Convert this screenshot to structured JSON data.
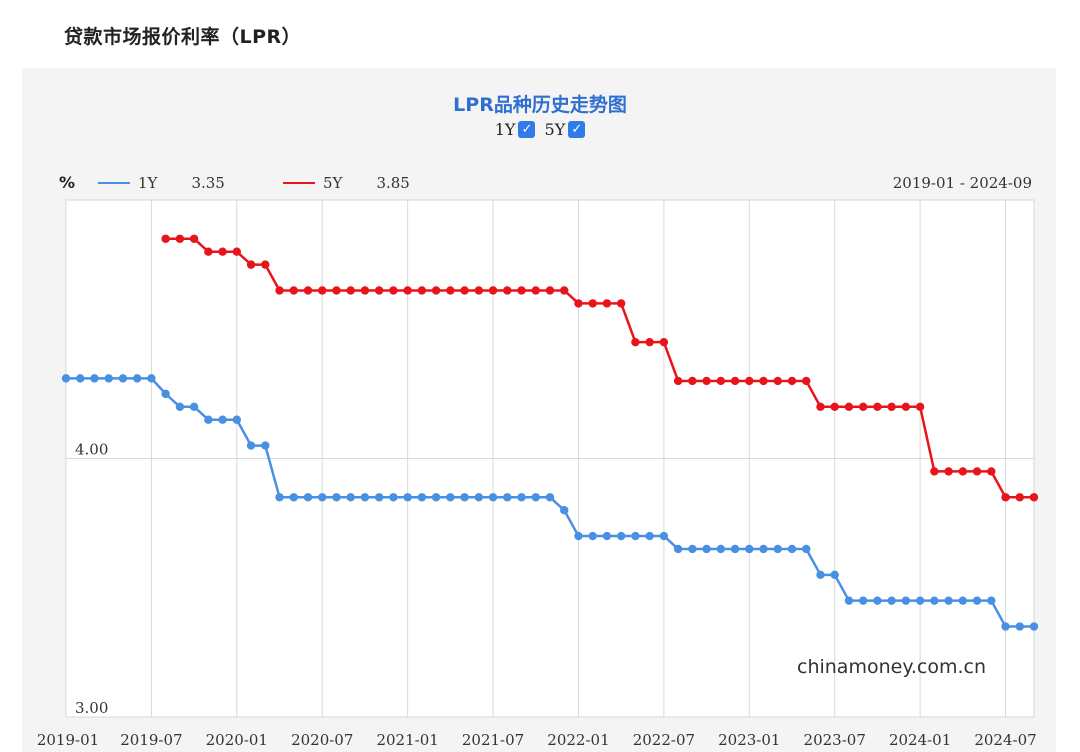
{
  "page": {
    "title": "贷款市场报价利率（LPR）"
  },
  "chart_data": {
    "type": "line",
    "title": "LPR品种历史走势图",
    "unit_label": "%",
    "date_range_label": "2019-01 - 2024-09",
    "toggles": [
      {
        "label": "1Y",
        "checked": true
      },
      {
        "label": "5Y",
        "checked": true
      }
    ],
    "legend": [
      {
        "name": "1Y",
        "latest": "3.35",
        "color": "#4a90e2"
      },
      {
        "name": "5Y",
        "latest": "3.85",
        "color": "#e8141b"
      }
    ],
    "x_ticks": [
      "2019-01",
      "2019-07",
      "2020-01",
      "2020-07",
      "2021-01",
      "2021-07",
      "2022-01",
      "2022-07",
      "2023-01",
      "2023-07",
      "2024-01",
      "2024-07"
    ],
    "y_ticks": [
      "4.00",
      "3.00"
    ],
    "ylim": [
      3.0,
      5.0
    ],
    "xlim": [
      "2019-01",
      "2024-09"
    ],
    "grid": true,
    "watermark": "chinamoney.com.cn",
    "series": [
      {
        "name": "1Y",
        "color": "#4a90e2",
        "points": [
          [
            "2019-01",
            4.31
          ],
          [
            "2019-02",
            4.31
          ],
          [
            "2019-03",
            4.31
          ],
          [
            "2019-04",
            4.31
          ],
          [
            "2019-05",
            4.31
          ],
          [
            "2019-06",
            4.31
          ],
          [
            "2019-07",
            4.31
          ],
          [
            "2019-08",
            4.25
          ],
          [
            "2019-09",
            4.2
          ],
          [
            "2019-10",
            4.2
          ],
          [
            "2019-11",
            4.15
          ],
          [
            "2019-12",
            4.15
          ],
          [
            "2020-01",
            4.15
          ],
          [
            "2020-02",
            4.05
          ],
          [
            "2020-03",
            4.05
          ],
          [
            "2020-04",
            3.85
          ],
          [
            "2020-05",
            3.85
          ],
          [
            "2020-06",
            3.85
          ],
          [
            "2020-07",
            3.85
          ],
          [
            "2020-08",
            3.85
          ],
          [
            "2020-09",
            3.85
          ],
          [
            "2020-10",
            3.85
          ],
          [
            "2020-11",
            3.85
          ],
          [
            "2020-12",
            3.85
          ],
          [
            "2021-01",
            3.85
          ],
          [
            "2021-02",
            3.85
          ],
          [
            "2021-03",
            3.85
          ],
          [
            "2021-04",
            3.85
          ],
          [
            "2021-05",
            3.85
          ],
          [
            "2021-06",
            3.85
          ],
          [
            "2021-07",
            3.85
          ],
          [
            "2021-08",
            3.85
          ],
          [
            "2021-09",
            3.85
          ],
          [
            "2021-10",
            3.85
          ],
          [
            "2021-11",
            3.85
          ],
          [
            "2021-12",
            3.8
          ],
          [
            "2022-01",
            3.7
          ],
          [
            "2022-02",
            3.7
          ],
          [
            "2022-03",
            3.7
          ],
          [
            "2022-04",
            3.7
          ],
          [
            "2022-05",
            3.7
          ],
          [
            "2022-06",
            3.7
          ],
          [
            "2022-07",
            3.7
          ],
          [
            "2022-08",
            3.65
          ],
          [
            "2022-09",
            3.65
          ],
          [
            "2022-10",
            3.65
          ],
          [
            "2022-11",
            3.65
          ],
          [
            "2022-12",
            3.65
          ],
          [
            "2023-01",
            3.65
          ],
          [
            "2023-02",
            3.65
          ],
          [
            "2023-03",
            3.65
          ],
          [
            "2023-04",
            3.65
          ],
          [
            "2023-05",
            3.65
          ],
          [
            "2023-06",
            3.55
          ],
          [
            "2023-07",
            3.55
          ],
          [
            "2023-08",
            3.45
          ],
          [
            "2023-09",
            3.45
          ],
          [
            "2023-10",
            3.45
          ],
          [
            "2023-11",
            3.45
          ],
          [
            "2023-12",
            3.45
          ],
          [
            "2024-01",
            3.45
          ],
          [
            "2024-02",
            3.45
          ],
          [
            "2024-03",
            3.45
          ],
          [
            "2024-04",
            3.45
          ],
          [
            "2024-05",
            3.45
          ],
          [
            "2024-06",
            3.45
          ],
          [
            "2024-07",
            3.35
          ],
          [
            "2024-08",
            3.35
          ],
          [
            "2024-09",
            3.35
          ]
        ]
      },
      {
        "name": "5Y",
        "color": "#e8141b",
        "points": [
          [
            "2019-08",
            4.85
          ],
          [
            "2019-09",
            4.85
          ],
          [
            "2019-10",
            4.85
          ],
          [
            "2019-11",
            4.8
          ],
          [
            "2019-12",
            4.8
          ],
          [
            "2020-01",
            4.8
          ],
          [
            "2020-02",
            4.75
          ],
          [
            "2020-03",
            4.75
          ],
          [
            "2020-04",
            4.65
          ],
          [
            "2020-05",
            4.65
          ],
          [
            "2020-06",
            4.65
          ],
          [
            "2020-07",
            4.65
          ],
          [
            "2020-08",
            4.65
          ],
          [
            "2020-09",
            4.65
          ],
          [
            "2020-10",
            4.65
          ],
          [
            "2020-11",
            4.65
          ],
          [
            "2020-12",
            4.65
          ],
          [
            "2021-01",
            4.65
          ],
          [
            "2021-02",
            4.65
          ],
          [
            "2021-03",
            4.65
          ],
          [
            "2021-04",
            4.65
          ],
          [
            "2021-05",
            4.65
          ],
          [
            "2021-06",
            4.65
          ],
          [
            "2021-07",
            4.65
          ],
          [
            "2021-08",
            4.65
          ],
          [
            "2021-09",
            4.65
          ],
          [
            "2021-10",
            4.65
          ],
          [
            "2021-11",
            4.65
          ],
          [
            "2021-12",
            4.65
          ],
          [
            "2022-01",
            4.6
          ],
          [
            "2022-02",
            4.6
          ],
          [
            "2022-03",
            4.6
          ],
          [
            "2022-04",
            4.6
          ],
          [
            "2022-05",
            4.45
          ],
          [
            "2022-06",
            4.45
          ],
          [
            "2022-07",
            4.45
          ],
          [
            "2022-08",
            4.3
          ],
          [
            "2022-09",
            4.3
          ],
          [
            "2022-10",
            4.3
          ],
          [
            "2022-11",
            4.3
          ],
          [
            "2022-12",
            4.3
          ],
          [
            "2023-01",
            4.3
          ],
          [
            "2023-02",
            4.3
          ],
          [
            "2023-03",
            4.3
          ],
          [
            "2023-04",
            4.3
          ],
          [
            "2023-05",
            4.3
          ],
          [
            "2023-06",
            4.2
          ],
          [
            "2023-07",
            4.2
          ],
          [
            "2023-08",
            4.2
          ],
          [
            "2023-09",
            4.2
          ],
          [
            "2023-10",
            4.2
          ],
          [
            "2023-11",
            4.2
          ],
          [
            "2023-12",
            4.2
          ],
          [
            "2024-01",
            4.2
          ],
          [
            "2024-02",
            3.95
          ],
          [
            "2024-03",
            3.95
          ],
          [
            "2024-04",
            3.95
          ],
          [
            "2024-05",
            3.95
          ],
          [
            "2024-06",
            3.95
          ],
          [
            "2024-07",
            3.85
          ],
          [
            "2024-08",
            3.85
          ],
          [
            "2024-09",
            3.85
          ]
        ]
      }
    ]
  }
}
